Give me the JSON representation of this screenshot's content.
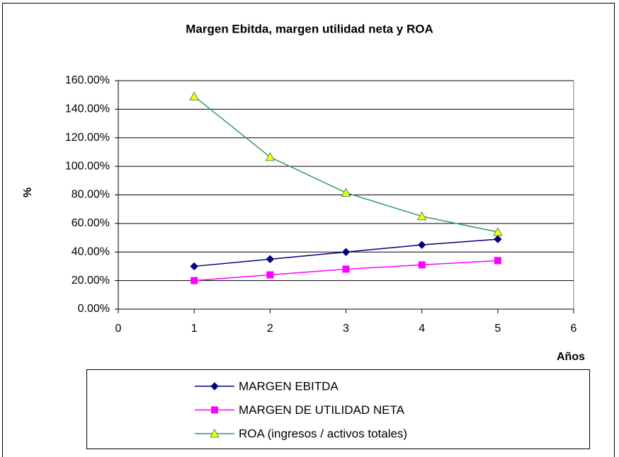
{
  "chart_data": {
    "type": "line",
    "title": "Margen Ebitda, margen utilidad neta y ROA",
    "x_label": "Años",
    "y_label": "%",
    "xlim": [
      0,
      6
    ],
    "xticks": [
      0,
      1,
      2,
      3,
      4,
      5,
      6
    ],
    "ylim": [
      0,
      160
    ],
    "yticks": [
      {
        "value": 0,
        "label": "0.00%"
      },
      {
        "value": 20,
        "label": "20.00%"
      },
      {
        "value": 40,
        "label": "40.00%"
      },
      {
        "value": 60,
        "label": "60.00%"
      },
      {
        "value": 80,
        "label": "80.00%"
      },
      {
        "value": 100,
        "label": "100.00%"
      },
      {
        "value": 120,
        "label": "120.00%"
      },
      {
        "value": 140,
        "label": "140.00%"
      },
      {
        "value": 160,
        "label": "160.00%"
      }
    ],
    "grid": true,
    "legend": "bottom",
    "x": [
      1,
      2,
      3,
      4,
      5
    ],
    "series": [
      {
        "name": "MARGEN EBITDA",
        "color": "#000080",
        "marker": "diamond",
        "marker_color": "#000080",
        "values": [
          30,
          35,
          40,
          45,
          49
        ]
      },
      {
        "name": "MARGEN DE UTILIDAD NETA",
        "color": "#ff00ff",
        "marker": "square",
        "marker_color": "#ff00ff",
        "values": [
          20,
          24,
          28,
          31,
          34
        ]
      },
      {
        "name": "ROA (ingresos / activos totales)",
        "color": "#339966",
        "marker": "triangle",
        "marker_color": "#ffff00",
        "values": [
          149,
          106.5,
          81.5,
          65,
          54
        ]
      }
    ]
  }
}
